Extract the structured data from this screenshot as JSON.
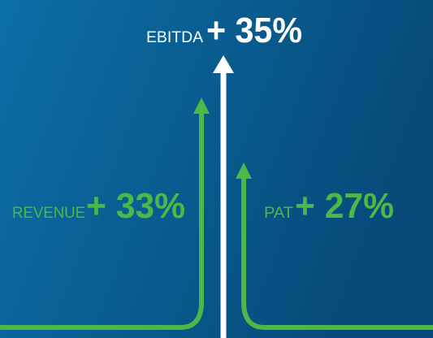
{
  "items": [
    {
      "label": "EBITDA",
      "change": "+ 35%"
    },
    {
      "label": "REVENUE",
      "change": "+ 33%"
    },
    {
      "label": "PAT",
      "change": "+ 27%"
    }
  ]
}
